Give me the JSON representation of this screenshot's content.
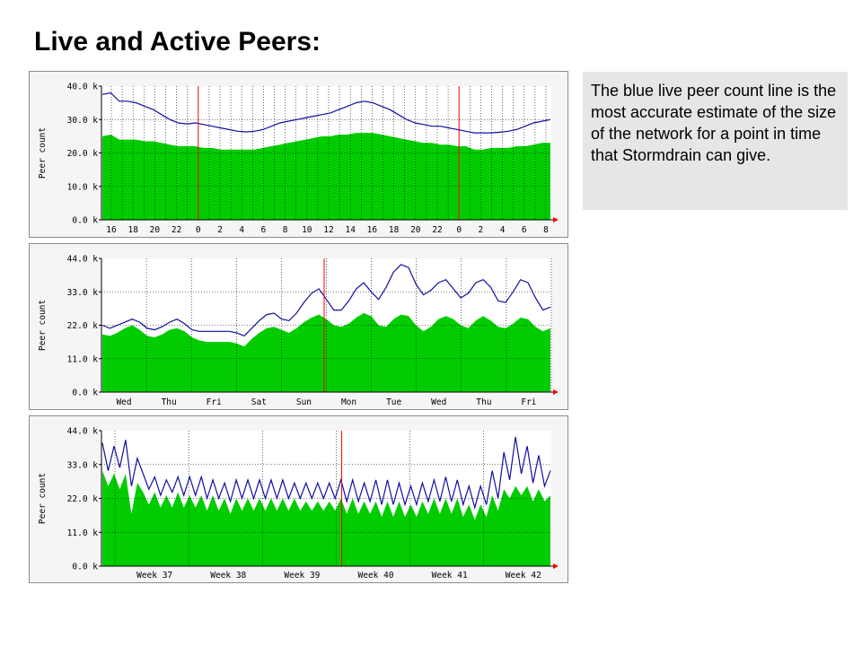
{
  "title": "Live and Active Peers:",
  "note": "The blue live peer count line is the most accurate estimate of the size of the network for a point in time that Stormdrain can give.",
  "colors": {
    "live_line": "#1010a0",
    "active_fill": "#00cc00",
    "vrule": "#ff0000",
    "grid": "#000000",
    "arrow": "#ff0000"
  },
  "chart_data": [
    {
      "type": "area",
      "ylabel": "Peer count",
      "ylim": [
        0,
        40
      ],
      "yticks": [
        "40.0 k",
        "30.0 k",
        "20.0 k",
        "10.0 k",
        "0.0 k"
      ],
      "xticks": [
        "16",
        "18",
        "20",
        "22",
        "0",
        "2",
        "4",
        "6",
        "8",
        "10",
        "12",
        "14",
        "16",
        "18",
        "20",
        "22",
        "0",
        "2",
        "4",
        "6",
        "8"
      ],
      "vrules_at_tick": [
        4,
        16
      ],
      "series": [
        {
          "values": [
            37.5,
            38,
            35.5,
            35.5,
            35,
            34,
            33,
            31.5,
            30,
            29,
            28.7,
            29,
            28.5,
            28,
            27.5,
            27,
            26.5,
            26.3,
            26.5,
            27,
            28,
            29,
            29.5,
            30,
            30.5,
            31,
            31.5,
            32,
            33,
            34,
            35,
            35.5,
            35,
            34,
            33,
            31.5,
            30,
            29,
            28.5,
            28,
            28,
            27.5,
            27,
            26.5,
            26,
            26,
            26,
            26.2,
            26.5,
            27,
            28,
            29,
            29.5,
            30
          ]
        },
        {
          "values": [
            25,
            25.5,
            24,
            24,
            24,
            23.5,
            23.5,
            23,
            22.5,
            22,
            22,
            22,
            21.5,
            21.5,
            21,
            21,
            21,
            21,
            21,
            21.5,
            22,
            22.5,
            23,
            23.5,
            24,
            24.5,
            25,
            25,
            25.5,
            25.5,
            26,
            26,
            26,
            25.5,
            25,
            24.5,
            24,
            23.5,
            23,
            23,
            22.5,
            22.5,
            22,
            22,
            21,
            21,
            21.5,
            21.5,
            21.5,
            22,
            22,
            22.5,
            23,
            23
          ]
        }
      ]
    },
    {
      "type": "area",
      "ylabel": "Peer count",
      "ylim": [
        0,
        44
      ],
      "yticks": [
        "44.0 k",
        "33.0 k",
        "22.0 k",
        "11.0 k",
        "0.0 k"
      ],
      "xticks": [
        "Wed",
        "Thu",
        "Fri",
        "Sat",
        "Sun",
        "Mon",
        "Tue",
        "Wed",
        "Thu",
        "Fri"
      ],
      "vrules_at_frac": [
        0.495
      ],
      "series": [
        {
          "values": [
            22,
            21,
            22,
            23,
            24,
            23,
            21,
            20.5,
            21.5,
            23,
            24,
            22.5,
            20.5,
            20,
            20,
            20,
            20,
            20,
            19.5,
            18.5,
            21,
            23.5,
            25.5,
            26,
            24,
            23.5,
            26,
            29.5,
            32.5,
            34,
            30.5,
            27,
            27,
            30,
            34,
            36,
            33,
            30.5,
            34.5,
            39.5,
            42,
            41,
            35.5,
            32,
            33.5,
            36,
            37,
            34,
            31,
            32.5,
            36,
            37,
            34.5,
            30,
            29.5,
            33,
            37,
            36,
            31,
            27,
            28
          ]
        },
        {
          "values": [
            19,
            18.5,
            19.5,
            21,
            22,
            20.5,
            18.5,
            18,
            19,
            20.5,
            21,
            20,
            18,
            17,
            16.5,
            16.5,
            16.5,
            16.5,
            16,
            15,
            17.5,
            19.5,
            21,
            21.5,
            20.5,
            19.5,
            21,
            23,
            24.5,
            25.5,
            24,
            22,
            21.5,
            22.5,
            24.5,
            26,
            25,
            22,
            21.5,
            24,
            25.5,
            25,
            22,
            20,
            21.5,
            24,
            25,
            24,
            22,
            21,
            23.5,
            25,
            23.5,
            21.5,
            21,
            22.5,
            24.5,
            24,
            21.5,
            20,
            21
          ]
        }
      ]
    },
    {
      "type": "area",
      "ylabel": "Peer count",
      "ylim": [
        0,
        44
      ],
      "yticks": [
        "44.0 k",
        "33.0 k",
        "22.0 k",
        "11.0 k",
        "0.0 k"
      ],
      "xticks": [
        "Week 37",
        "Week 38",
        "Week 39",
        "Week 40",
        "Week 41",
        "Week 42"
      ],
      "vrules_at_frac": [
        0.534
      ],
      "series": [
        {
          "values": [
            40,
            31,
            39,
            32,
            41,
            26,
            35,
            30,
            25,
            29,
            23,
            28,
            24,
            29,
            23,
            29,
            23,
            29,
            22,
            28,
            22,
            27,
            21,
            28,
            22,
            28,
            22,
            28,
            22,
            28,
            22,
            28,
            22,
            27,
            22,
            27,
            22,
            27,
            22,
            27,
            22,
            28,
            21,
            28,
            21,
            27,
            21,
            28,
            20,
            28,
            20,
            27,
            20,
            26,
            20,
            27,
            21,
            28,
            21,
            29,
            21,
            28,
            20,
            26,
            19,
            26,
            20,
            31,
            22,
            37,
            28,
            42,
            30,
            39,
            27,
            36,
            26,
            31
          ]
        },
        {
          "values": [
            31,
            26,
            30,
            25,
            30,
            17,
            27,
            24,
            20,
            24,
            19,
            23,
            19,
            24,
            19,
            23,
            19,
            23,
            18,
            23,
            18,
            22,
            17,
            22,
            18,
            22,
            18,
            22,
            18,
            22,
            18,
            22,
            18,
            22,
            18,
            21,
            18,
            21,
            18,
            21,
            18,
            22,
            17,
            22,
            17,
            21,
            17,
            21,
            16,
            21,
            16,
            21,
            16,
            20,
            16,
            21,
            17,
            22,
            17,
            22,
            17,
            22,
            16,
            20,
            15,
            20,
            16,
            23,
            18,
            25,
            22,
            26,
            23,
            26,
            21,
            25,
            21,
            23
          ]
        }
      ]
    }
  ]
}
